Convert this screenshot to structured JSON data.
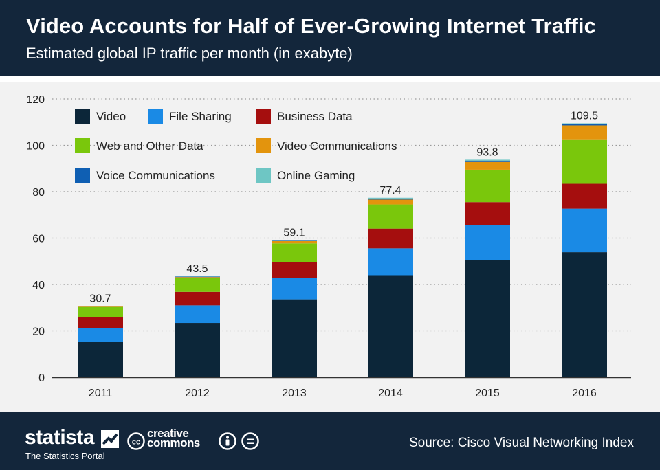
{
  "header": {
    "title": "Video Accounts for Half of Ever-Growing Internet Traffic",
    "subtitle": "Estimated global IP traffic per month (in exabyte)"
  },
  "footer": {
    "brand": "statista",
    "tagline": "The Statistics Portal",
    "license_line1": "creative",
    "license_line2": "commons",
    "source": "Source: Cisco Visual Networking Index"
  },
  "chart_data": {
    "type": "bar",
    "stacked": true,
    "title": "Video Accounts for Half of Ever-Growing Internet Traffic",
    "subtitle": "Estimated global IP traffic per month (in exabyte)",
    "xlabel": "",
    "ylabel": "",
    "ylim": [
      0,
      120
    ],
    "yticks": [
      0,
      20,
      40,
      60,
      80,
      100,
      120
    ],
    "grid": true,
    "legend_position": "top-left",
    "categories": [
      "2011",
      "2012",
      "2013",
      "2014",
      "2015",
      "2016"
    ],
    "totals": [
      30.7,
      43.5,
      59.1,
      77.4,
      93.8,
      109.5
    ],
    "total_labels": [
      "30.7",
      "43.5",
      "59.1",
      "77.4",
      "93.8",
      "109.5"
    ],
    "series": [
      {
        "name": "Video",
        "color": "#0c2639",
        "values": [
          15.3,
          23.4,
          33.6,
          44.0,
          50.6,
          53.9
        ]
      },
      {
        "name": "File Sharing",
        "color": "#1a8ae5",
        "values": [
          6.0,
          7.6,
          9.1,
          11.6,
          14.9,
          18.8
        ]
      },
      {
        "name": "Business Data",
        "color": "#a50e0e",
        "values": [
          4.7,
          5.8,
          6.9,
          8.5,
          10.0,
          10.7
        ]
      },
      {
        "name": "Web and Other Data",
        "color": "#7ac70c",
        "values": [
          4.3,
          6.1,
          8.1,
          10.4,
          14.0,
          18.9
        ]
      },
      {
        "name": "Video Communications",
        "color": "#e3940d",
        "values": [
          0.2,
          0.3,
          1.0,
          2.1,
          3.3,
          6.3
        ]
      },
      {
        "name": "Voice Communications",
        "color": "#0f5fb3",
        "values": [
          0.1,
          0.2,
          0.2,
          0.5,
          0.6,
          0.6
        ]
      },
      {
        "name": "Online Gaming",
        "color": "#6ec6c4",
        "values": [
          0.1,
          0.1,
          0.2,
          0.3,
          0.4,
          0.3
        ]
      }
    ]
  }
}
